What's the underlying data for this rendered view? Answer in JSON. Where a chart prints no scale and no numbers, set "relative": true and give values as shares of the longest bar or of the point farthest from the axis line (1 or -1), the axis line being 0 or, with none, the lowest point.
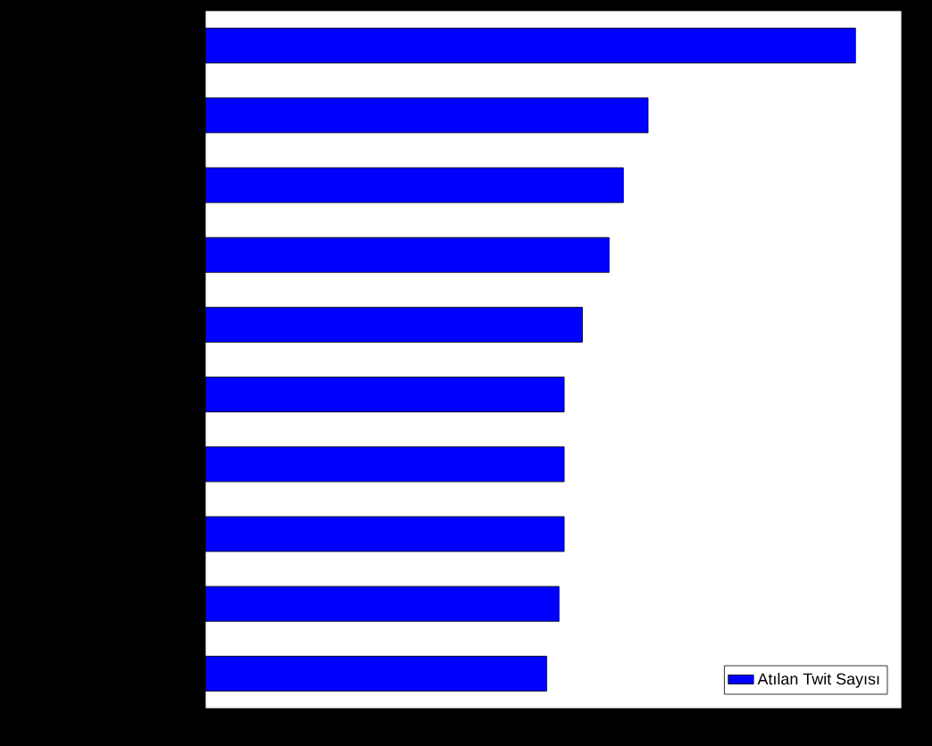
{
  "chart_data": {
    "type": "bar",
    "orientation": "horizontal",
    "relative": true,
    "legend": "bottom right",
    "categories": [
      null,
      null,
      null,
      null,
      null,
      null,
      null,
      null,
      null,
      null
    ],
    "series": [
      {
        "name": "Atılan Twit Sayısı",
        "color": "#0000ff",
        "values": [
          1,
          0.681,
          0.643,
          0.621,
          0.58,
          0.552,
          0.552,
          0.552,
          0.544,
          0.525
        ]
      }
    ]
  }
}
